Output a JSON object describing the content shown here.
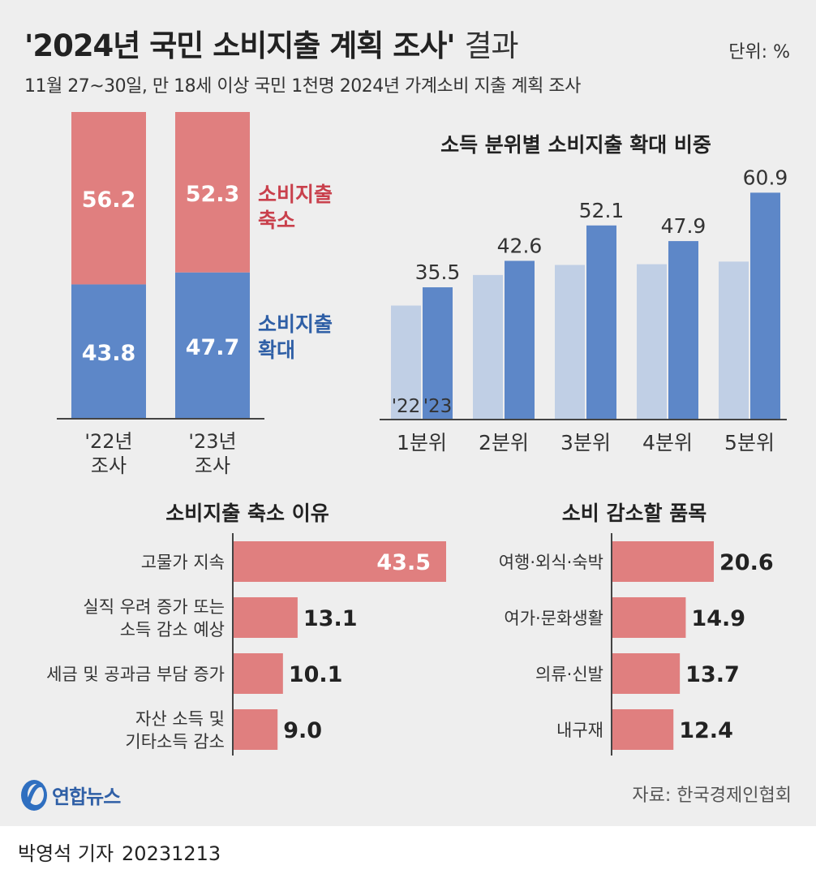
{
  "header": {
    "title": "'2024년 국민 소비지출 계획 조사'",
    "title_suffix": "결과",
    "unit": "단위: %",
    "subtitle": "11월 27~30일, 만 18세 이상 국민 1천명 2024년 가계소비 지출 계획 조사"
  },
  "colors": {
    "panel_bg": "#eeeeee",
    "red": "#e07f7f",
    "red_text": "#c9404c",
    "blue": "#5d87c8",
    "blue_text": "#2f5fa6",
    "light_blue": "#c0cfe5",
    "axis": "#444444"
  },
  "chart_data": [
    {
      "id": "stacked",
      "type": "bar",
      "stacked": true,
      "title": "",
      "categories": [
        "'22년\n조사",
        "'23년\n조사"
      ],
      "series": [
        {
          "name": "소비지출\n확대",
          "values": [
            43.8,
            47.7
          ],
          "color": "#5d87c8"
        },
        {
          "name": "소비지출\n축소",
          "values": [
            56.2,
            52.3
          ],
          "color": "#e07f7f"
        }
      ],
      "ylim": [
        0,
        100
      ]
    },
    {
      "id": "quintile",
      "type": "bar",
      "title": "소득 분위별 소비지출 확대 비중",
      "categories": [
        "1분위",
        "2분위",
        "3분위",
        "4분위",
        "5분위"
      ],
      "series": [
        {
          "name": "'22",
          "values": [
            30.6,
            38.8,
            41.5,
            41.7,
            42.4
          ],
          "color": "#c0cfe5"
        },
        {
          "name": "'23",
          "values": [
            35.5,
            42.6,
            52.1,
            47.9,
            60.9
          ],
          "color": "#5d87c8"
        }
      ],
      "labeled_series": "'23",
      "ylim": [
        0,
        66
      ]
    },
    {
      "id": "reasons",
      "type": "bar",
      "orientation": "horizontal",
      "title": "소비지출 축소 이유",
      "categories": [
        "고물가 지속",
        "실직 우려 증가 또는\n소득 감소 예상",
        "세금 및 공과금 부담 증가",
        "자산 소득 및\n기타소득 감소"
      ],
      "values": [
        43.5,
        13.1,
        10.1,
        9.0
      ],
      "value_labels": [
        "43.5",
        "13.1",
        "10.1",
        "9.0"
      ],
      "xlim": [
        0,
        45
      ]
    },
    {
      "id": "items",
      "type": "bar",
      "orientation": "horizontal",
      "title": "소비 감소할 품목",
      "categories": [
        "여행·외식·숙박",
        "여가·문화생활",
        "의류·신발",
        "내구재"
      ],
      "values": [
        20.6,
        14.9,
        13.7,
        12.4
      ],
      "value_labels": [
        "20.6",
        "14.9",
        "13.7",
        "12.4"
      ],
      "xlim": [
        0,
        40
      ]
    }
  ],
  "footer": {
    "logo_text": "연합뉴스",
    "source": "자료: 한국경제인협회",
    "reporter": "박영석 기자",
    "date": "20231213"
  }
}
